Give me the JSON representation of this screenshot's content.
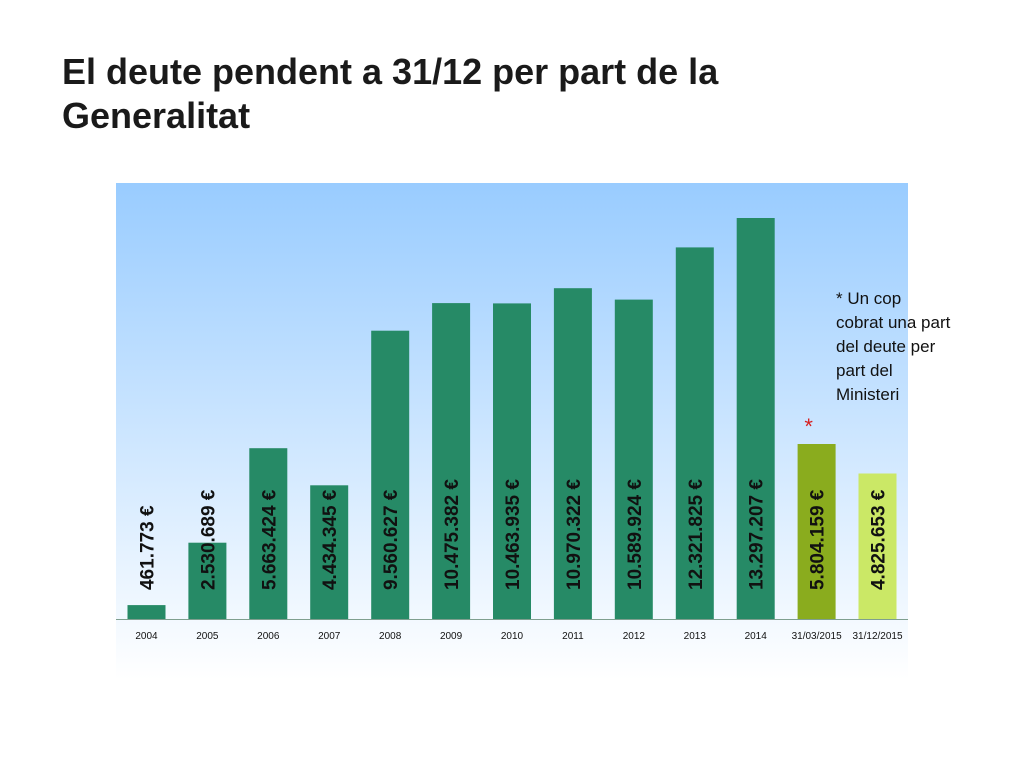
{
  "slide": {
    "title": "El deute pendent a 31/12 per part de la Generalitat"
  },
  "chart_data": {
    "type": "bar",
    "title": "",
    "xlabel": "",
    "ylabel": "",
    "grid": false,
    "legend": "none",
    "ylim": [
      0,
      14000000
    ],
    "categories": [
      "2004",
      "2005",
      "2006",
      "2007",
      "2008",
      "2009",
      "2010",
      "2011",
      "2012",
      "2013",
      "2014",
      "31/03/2015",
      "31/12/2015"
    ],
    "values": [
      461773,
      2530689,
      5663424,
      4434345,
      9560627,
      10475382,
      10463935,
      10970322,
      10589924,
      12321825,
      13297207,
      5804159,
      4825653
    ],
    "value_labels": [
      "461.773 €",
      "2.530.689 €",
      "5.663.424 €",
      "4.434.345 €",
      "9.560.627 €",
      "10.475.382 €",
      "10.463.935 €",
      "10.970.322 €",
      "10.589.924 €",
      "12.321.825 €",
      "13.297.207 €",
      "5.804.159 €",
      "4.825.653 €"
    ],
    "bar_colors": [
      "#268a66",
      "#268a66",
      "#268a66",
      "#268a66",
      "#268a66",
      "#268a66",
      "#268a66",
      "#268a66",
      "#268a66",
      "#268a66",
      "#268a66",
      "#8aac1e",
      "#cbe866"
    ],
    "annotation": {
      "marker": "*",
      "category": "31/03/2015",
      "note_lines": [
        "* Un cop",
        "cobrat una part",
        "del deute per",
        "part del",
        "Ministeri"
      ]
    }
  },
  "colors": {
    "plot_top": "#99ccff",
    "plot_bottom": "#ffffff",
    "marker": "#d61f1f"
  }
}
